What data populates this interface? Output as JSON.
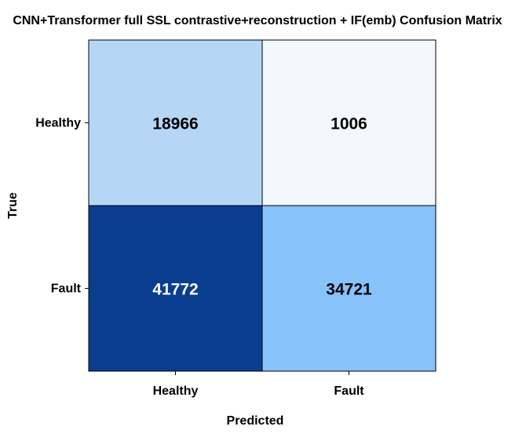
{
  "chart_data": {
    "type": "heatmap",
    "title": "CNN+Transformer full SSL contrastive+reconstruction + IF(emb) Confusion Matrix",
    "xlabel": "Predicted",
    "ylabel": "True",
    "x_categories": [
      "Healthy",
      "Fault"
    ],
    "y_categories": [
      "Healthy",
      "Fault"
    ],
    "values": [
      [
        18966,
        1006
      ],
      [
        41772,
        34721
      ]
    ],
    "cell_colors": [
      [
        "#b6d6f6",
        "#f2f8fe"
      ],
      [
        "#083d8f",
        "#88c2fa"
      ]
    ],
    "cell_text_colors": [
      [
        "#000000",
        "#000000"
      ],
      [
        "#ffffff",
        "#000000"
      ]
    ],
    "colorbar": false,
    "grid": false
  }
}
